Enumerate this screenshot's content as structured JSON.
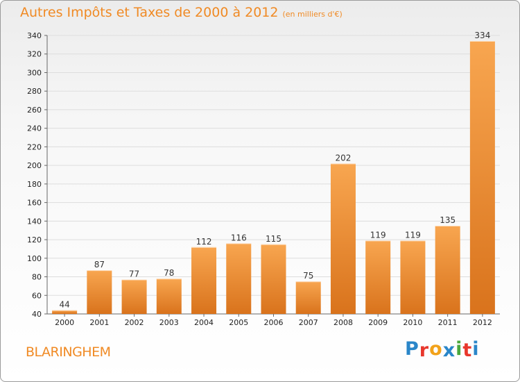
{
  "title": "Autres Impôts et Taxes de 2000 à 2012",
  "unit": "(en milliers d'€)",
  "place": "BLARINGHEM",
  "brand": {
    "letters": [
      "P",
      "r",
      "o",
      "x",
      "i",
      "t",
      "i"
    ],
    "colors": [
      "#2a86c9",
      "#e8372c",
      "#f2a21a",
      "#2a86c9",
      "#4aa83e",
      "#e8372c",
      "#2a86c9"
    ]
  },
  "colors": {
    "bar_light": "#f8a650",
    "bar_dark": "#d9731c",
    "accent": "#f08a24",
    "grid": "#dddddd"
  },
  "chart_data": {
    "type": "bar",
    "categories": [
      "2000",
      "2001",
      "2002",
      "2003",
      "2004",
      "2005",
      "2006",
      "2007",
      "2008",
      "2009",
      "2010",
      "2011",
      "2012"
    ],
    "values": [
      44,
      87,
      77,
      78,
      112,
      116,
      115,
      75,
      202,
      119,
      119,
      135,
      334
    ],
    "ylim": [
      40,
      340
    ],
    "yticks": [
      40,
      60,
      80,
      100,
      120,
      140,
      160,
      180,
      200,
      220,
      240,
      260,
      280,
      300,
      320,
      340
    ],
    "grid": true,
    "data_labels": true
  }
}
